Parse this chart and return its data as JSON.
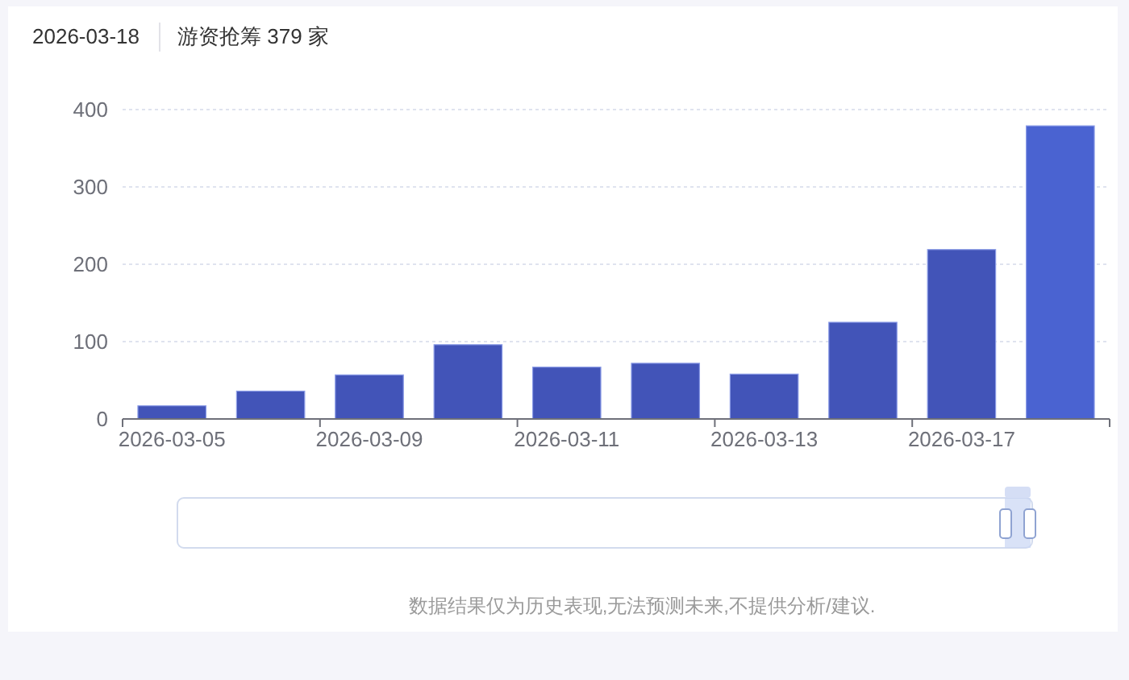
{
  "chart_data": {
    "type": "bar",
    "annotations": [
      "2026-03-18",
      "游资抢筹 379 家",
      "数据结果仅为历史表现,无法预测未来,不提供分析/建议."
    ],
    "categories": [
      "2026-03-05",
      null,
      "2026-03-09",
      null,
      "2026-03-11",
      null,
      "2026-03-13",
      null,
      "2026-03-17",
      null
    ],
    "values": [
      17,
      36,
      57,
      96,
      67,
      72,
      58,
      125,
      219,
      379
    ],
    "colors": [
      "#4254b8",
      "#4254b8",
      "#4254b8",
      "#4254b8",
      "#4254b8",
      "#4254b8",
      "#4254b8",
      "#4254b8",
      "#4254b8",
      "#4a63d1"
    ],
    "ylim": [
      0,
      400
    ],
    "yticks": [
      0,
      100,
      200,
      300,
      400
    ],
    "grid": "y"
  }
}
